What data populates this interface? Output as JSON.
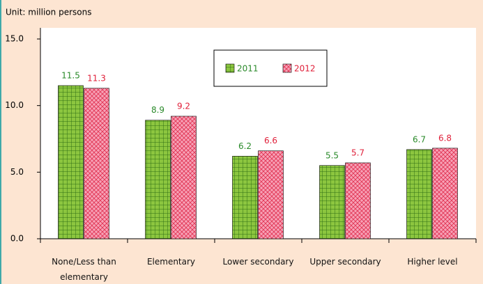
{
  "chart_data": {
    "type": "bar",
    "subtitle": "Unit: million persons",
    "categories": [
      "None/Less than elementary",
      "Elementary",
      "Lower secondary",
      "Upper secondary",
      "Higher level"
    ],
    "series": [
      {
        "name": "2011",
        "color": "#8cc63f",
        "label_color": "#2a8a2a",
        "values": [
          11.5,
          8.9,
          6.2,
          5.5,
          6.7
        ]
      },
      {
        "name": "2012",
        "color": "#f7a1b6",
        "label_color": "#e0203a",
        "values": [
          11.3,
          9.2,
          6.6,
          5.7,
          6.8
        ]
      }
    ],
    "ylim": [
      0,
      15
    ],
    "yticks": [
      {
        "value": 0,
        "label": "0.0"
      },
      {
        "value": 5,
        "label": "5.0"
      },
      {
        "value": 10,
        "label": "10.0"
      },
      {
        "value": 15,
        "label": "15.0"
      }
    ],
    "grid": false
  }
}
